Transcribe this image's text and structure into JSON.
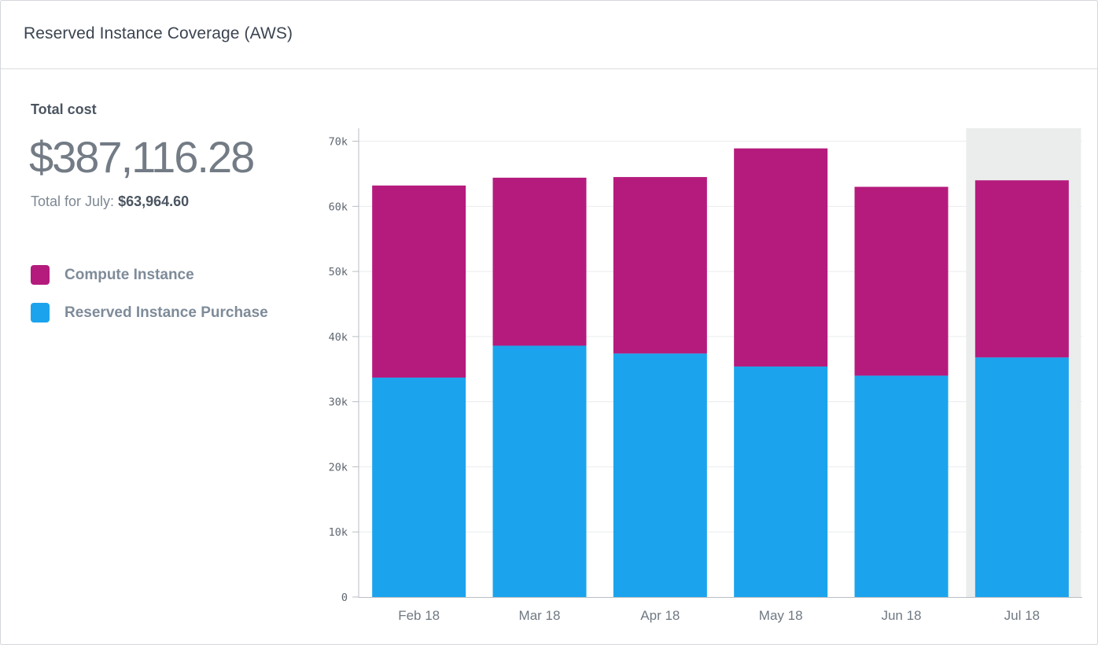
{
  "card": {
    "title": "Reserved Instance Coverage (AWS)"
  },
  "summary": {
    "total_label": "Total cost",
    "total_value": "$387,116.28",
    "month_prefix": "Total for July:",
    "month_value": "$63,964.60"
  },
  "colors": {
    "compute": "#b51b7d",
    "reserved": "#1ba4ed",
    "highlight": "#ebecec",
    "gridline": "#e9ecee"
  },
  "legend": [
    {
      "label": "Compute Instance",
      "color": "#b51b7d"
    },
    {
      "label": "Reserved Instance Purchase",
      "color": "#1ba4ed"
    }
  ],
  "chart_data": {
    "type": "bar",
    "stacked": true,
    "categories": [
      "Feb 18",
      "Mar 18",
      "Apr 18",
      "May 18",
      "Jun 18",
      "Jul 18"
    ],
    "series": [
      {
        "name": "Reserved Instance Purchase",
        "values": [
          33700,
          38600,
          37400,
          35400,
          34000,
          36800
        ]
      },
      {
        "name": "Compute Instance",
        "values": [
          29500,
          25800,
          27100,
          33500,
          29000,
          27200
        ]
      }
    ],
    "ylim": [
      0,
      72000
    ],
    "yticks": [
      0,
      10000,
      20000,
      30000,
      40000,
      50000,
      60000,
      70000
    ],
    "ytick_labels": [
      "0",
      "10k",
      "20k",
      "30k",
      "40k",
      "50k",
      "60k",
      "70k"
    ],
    "highlighted_category": "Jul 18",
    "grid": true
  }
}
